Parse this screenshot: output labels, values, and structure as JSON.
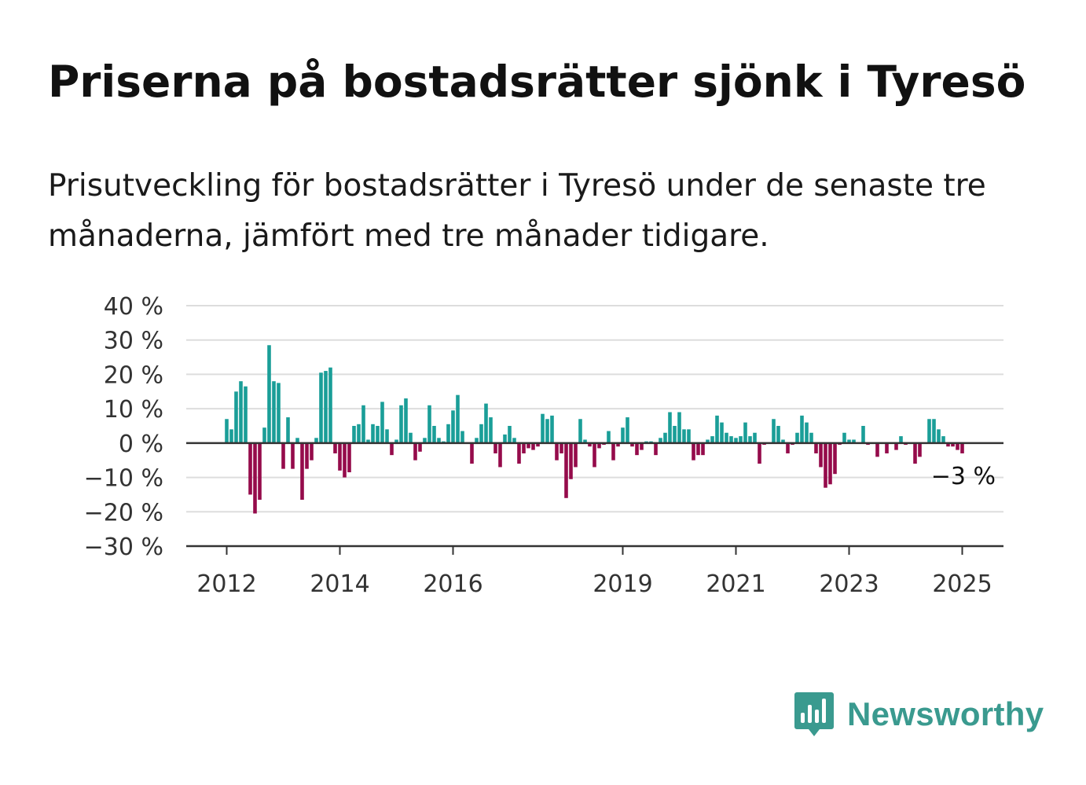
{
  "header": {
    "title": "Priserna på bostadsrätter sjönk i Tyresö",
    "subtitle": "Prisutveckling för bostadsrätter i Tyresö under de senaste tre månaderna, jämfört med tre månader tidigare."
  },
  "colors": {
    "positive": "#1a9e98",
    "negative": "#950b4b",
    "grid": "#dddddd",
    "axis": "#333333",
    "brand": "#3a9a8f"
  },
  "branding": {
    "name": "Newsworthy",
    "icon": "bar-chart-speech-bubble-icon"
  },
  "chart_data": {
    "type": "bar",
    "title": "Priserna på bostadsrätter sjönk i Tyresö",
    "subtitle": "Prisutveckling för bostadsrätter i Tyresö under de senaste tre månaderna, jämfört med tre månader tidigare.",
    "y_unit": "%",
    "ylim": [
      -30,
      40
    ],
    "y_ticks": [
      40,
      30,
      20,
      10,
      0,
      -10,
      -20,
      -30
    ],
    "y_tick_labels": [
      "40 %",
      "30 %",
      "20 %",
      "10 %",
      "0 %",
      "−10 %",
      "−20 %",
      "−30 %"
    ],
    "x_tick_labels": [
      "2012",
      "2014",
      "2016",
      "2019",
      "2021",
      "2023",
      "2025"
    ],
    "x_tick_years": [
      2012,
      2014,
      2016,
      2019,
      2021,
      2023,
      2025
    ],
    "grid": true,
    "x_start": "2012-01",
    "frequency": "monthly",
    "last_value_label": "−3 %",
    "values": [
      7,
      4,
      15,
      18,
      16.5,
      -15,
      -20.5,
      -16.5,
      4.5,
      28.5,
      18,
      17.5,
      -7.5,
      7.5,
      -7.5,
      1.5,
      -16.5,
      -7.5,
      -5,
      1.5,
      20.5,
      21,
      22,
      -3,
      -8,
      -10,
      -8.5,
      5,
      5.5,
      11,
      1,
      5.5,
      5,
      12,
      4,
      -3.5,
      1,
      11,
      13,
      3,
      -5,
      -2.5,
      1.5,
      11,
      5,
      1.5,
      0.5,
      5.5,
      9.5,
      14,
      3.5,
      0,
      -6,
      1.5,
      5.5,
      11.5,
      7.5,
      -3,
      -7,
      2.5,
      5,
      1.5,
      -6,
      -3,
      -1.5,
      -2,
      -1,
      8.5,
      7,
      8,
      -5,
      -3,
      -16,
      -10.5,
      -7,
      7,
      1,
      -1,
      -7,
      -1.5,
      -0.5,
      3.5,
      -5,
      -1,
      4.5,
      7.5,
      -1,
      -3.5,
      -2,
      0.5,
      0.5,
      -3.5,
      1.5,
      3,
      9,
      5,
      9,
      4,
      4,
      -5,
      -3.5,
      -3.5,
      1,
      2,
      8,
      6,
      3,
      2,
      1.5,
      2,
      6,
      2,
      3,
      -6,
      -0.5,
      0,
      7,
      5,
      1,
      -3,
      -0.5,
      3,
      8,
      6,
      3,
      -3,
      -7,
      -13,
      -12,
      -9,
      -0.5,
      3,
      1,
      1,
      0,
      5,
      -0.5,
      0,
      -4,
      0,
      -3,
      0,
      -2,
      2,
      -0.5,
      0,
      -6,
      -4,
      0,
      7,
      7,
      4,
      2,
      -1,
      -1,
      -2,
      -3
    ]
  }
}
